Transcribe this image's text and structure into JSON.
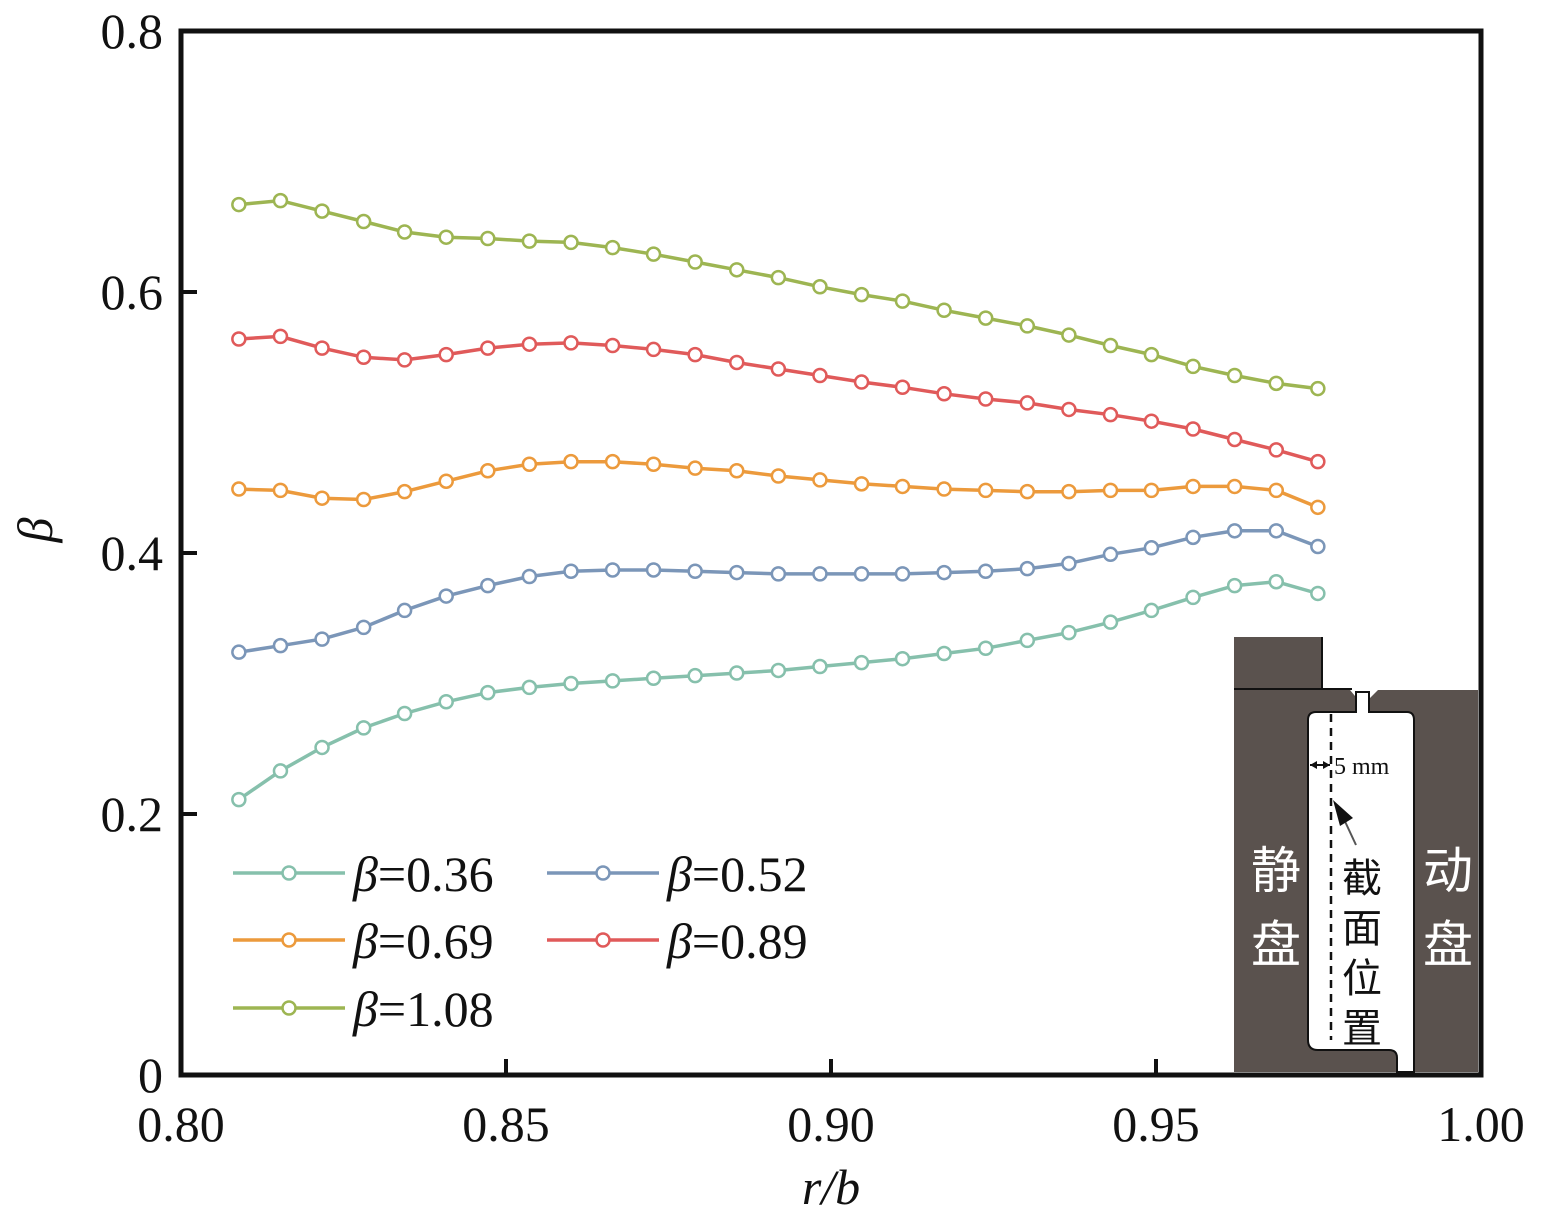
{
  "chart_data": {
    "type": "line",
    "title": "",
    "xlabel": "r/b",
    "ylabel": "β",
    "xlim": [
      0.8,
      1.0
    ],
    "ylim": [
      0,
      0.8
    ],
    "xticks": [
      "0.80",
      "0.85",
      "0.90",
      "0.95",
      "1.00"
    ],
    "yticks": [
      "0",
      "0.2",
      "0.4",
      "0.6",
      "0.8"
    ],
    "grid": false,
    "legend_position": "bottom-left",
    "x": [
      0.8089,
      0.8153,
      0.8217,
      0.8281,
      0.8344,
      0.8408,
      0.8472,
      0.8536,
      0.86,
      0.8664,
      0.8727,
      0.8791,
      0.8855,
      0.8919,
      0.8983,
      0.9047,
      0.911,
      0.9174,
      0.9238,
      0.9302,
      0.9366,
      0.943,
      0.9493,
      0.9557,
      0.9621,
      0.9685,
      0.9749
    ],
    "series": [
      {
        "name": "β=0.36",
        "prefix": "β",
        "label": "=0.36",
        "color": "#86c0ac",
        "values": [
          0.211,
          0.233,
          0.251,
          0.266,
          0.277,
          0.286,
          0.293,
          0.297,
          0.3,
          0.302,
          0.304,
          0.306,
          0.308,
          0.31,
          0.313,
          0.316,
          0.319,
          0.323,
          0.327,
          0.333,
          0.339,
          0.347,
          0.356,
          0.366,
          0.375,
          0.378,
          0.369
        ]
      },
      {
        "name": "β=0.52",
        "prefix": "β",
        "label": "=0.52",
        "color": "#7b96b8",
        "values": [
          0.324,
          0.329,
          0.334,
          0.343,
          0.356,
          0.367,
          0.375,
          0.382,
          0.386,
          0.387,
          0.387,
          0.386,
          0.385,
          0.384,
          0.384,
          0.384,
          0.384,
          0.385,
          0.386,
          0.388,
          0.392,
          0.399,
          0.404,
          0.412,
          0.417,
          0.417,
          0.405
        ]
      },
      {
        "name": "β=0.69",
        "prefix": "β",
        "label": "=0.69",
        "color": "#ec9a3c",
        "values": [
          0.449,
          0.448,
          0.442,
          0.441,
          0.447,
          0.455,
          0.463,
          0.468,
          0.47,
          0.47,
          0.468,
          0.465,
          0.463,
          0.459,
          0.456,
          0.453,
          0.451,
          0.449,
          0.448,
          0.447,
          0.447,
          0.448,
          0.448,
          0.451,
          0.451,
          0.448,
          0.435
        ]
      },
      {
        "name": "β=0.89",
        "prefix": "β",
        "label": "=0.89",
        "color": "#e05a5a",
        "values": [
          0.564,
          0.566,
          0.557,
          0.55,
          0.548,
          0.552,
          0.557,
          0.56,
          0.561,
          0.559,
          0.556,
          0.552,
          0.546,
          0.541,
          0.536,
          0.531,
          0.527,
          0.522,
          0.518,
          0.515,
          0.51,
          0.506,
          0.501,
          0.495,
          0.487,
          0.479,
          0.47
        ]
      },
      {
        "name": "β=1.08",
        "prefix": "β",
        "label": "=1.08",
        "color": "#9db552",
        "values": [
          0.667,
          0.67,
          0.662,
          0.654,
          0.646,
          0.642,
          0.641,
          0.639,
          0.638,
          0.634,
          0.629,
          0.623,
          0.617,
          0.611,
          0.604,
          0.598,
          0.593,
          0.586,
          0.58,
          0.574,
          0.567,
          0.559,
          0.552,
          0.543,
          0.536,
          0.53,
          0.526
        ]
      }
    ],
    "inset": {
      "dimension": "5 mm",
      "stator": [
        "静",
        "盘"
      ],
      "rotor": [
        "动",
        "盘"
      ],
      "section": [
        "截",
        "面",
        "位",
        "置"
      ],
      "fill_color": "#5a524e"
    }
  }
}
